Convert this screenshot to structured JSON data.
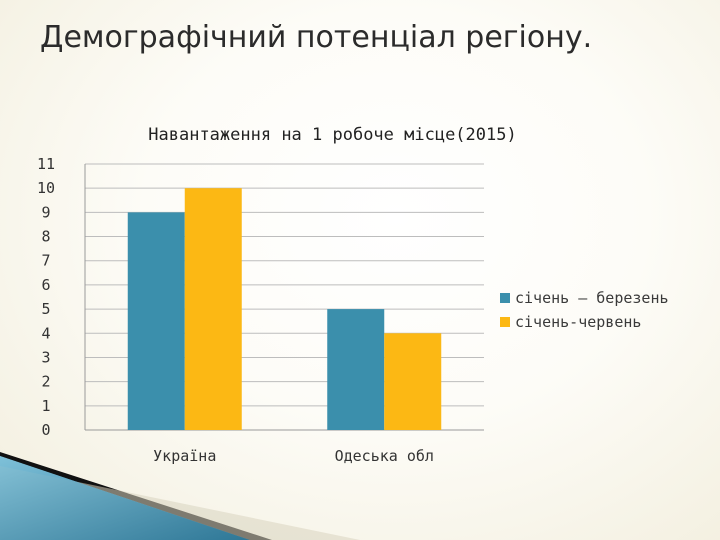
{
  "slide": {
    "title": "Демографічний потенціал регіону."
  },
  "chart_data": {
    "type": "bar",
    "title": "Навантаження на 1 робоче місце(2015)",
    "xlabel": "",
    "ylabel": "",
    "categories": [
      "Україна",
      "Одеська обл"
    ],
    "series": [
      {
        "name": "січень – березень",
        "values": [
          9,
          5
        ],
        "color": "#3b8fac"
      },
      {
        "name": "січень-червень",
        "values": [
          10,
          4
        ],
        "color": "#fcb814"
      }
    ],
    "ylim": [
      0,
      11
    ],
    "yticks": [
      "0",
      "1",
      "2",
      "3",
      "4",
      "5",
      "6",
      "7",
      "8",
      "9",
      "10",
      "11"
    ],
    "grid": true,
    "legend_position": "right"
  }
}
